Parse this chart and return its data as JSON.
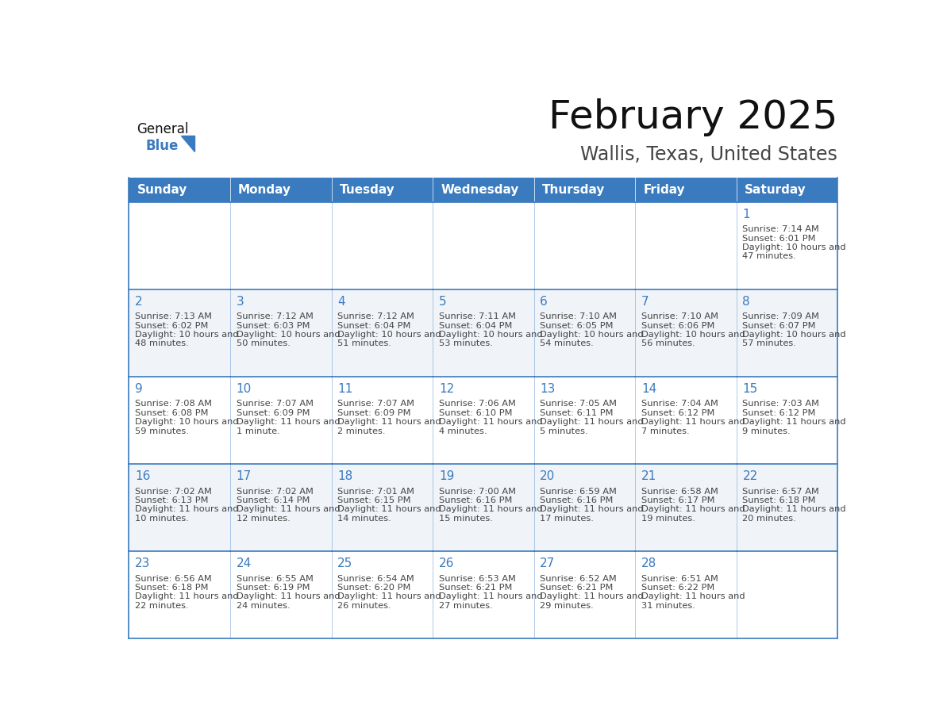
{
  "title": "February 2025",
  "subtitle": "Wallis, Texas, United States",
  "days_of_week": [
    "Sunday",
    "Monday",
    "Tuesday",
    "Wednesday",
    "Thursday",
    "Friday",
    "Saturday"
  ],
  "header_bg_color": "#3a7abf",
  "header_text_color": "#ffffff",
  "cell_bg_color": "#ffffff",
  "alt_cell_bg_color": "#f0f4f8",
  "border_color": "#3a7abf",
  "day_number_color": "#3a7abf",
  "cell_text_color": "#444444",
  "title_color": "#111111",
  "subtitle_color": "#444444",
  "logo_general_color": "#111111",
  "logo_blue_color": "#3a7abf",
  "calendar_data": [
    [
      null,
      null,
      null,
      null,
      null,
      null,
      {
        "day": 1,
        "sunrise": "7:14 AM",
        "sunset": "6:01 PM",
        "daylight": "10 hours and 47 minutes."
      }
    ],
    [
      {
        "day": 2,
        "sunrise": "7:13 AM",
        "sunset": "6:02 PM",
        "daylight": "10 hours and 48 minutes."
      },
      {
        "day": 3,
        "sunrise": "7:12 AM",
        "sunset": "6:03 PM",
        "daylight": "10 hours and 50 minutes."
      },
      {
        "day": 4,
        "sunrise": "7:12 AM",
        "sunset": "6:04 PM",
        "daylight": "10 hours and 51 minutes."
      },
      {
        "day": 5,
        "sunrise": "7:11 AM",
        "sunset": "6:04 PM",
        "daylight": "10 hours and 53 minutes."
      },
      {
        "day": 6,
        "sunrise": "7:10 AM",
        "sunset": "6:05 PM",
        "daylight": "10 hours and 54 minutes."
      },
      {
        "day": 7,
        "sunrise": "7:10 AM",
        "sunset": "6:06 PM",
        "daylight": "10 hours and 56 minutes."
      },
      {
        "day": 8,
        "sunrise": "7:09 AM",
        "sunset": "6:07 PM",
        "daylight": "10 hours and 57 minutes."
      }
    ],
    [
      {
        "day": 9,
        "sunrise": "7:08 AM",
        "sunset": "6:08 PM",
        "daylight": "10 hours and 59 minutes."
      },
      {
        "day": 10,
        "sunrise": "7:07 AM",
        "sunset": "6:09 PM",
        "daylight": "11 hours and 1 minute."
      },
      {
        "day": 11,
        "sunrise": "7:07 AM",
        "sunset": "6:09 PM",
        "daylight": "11 hours and 2 minutes."
      },
      {
        "day": 12,
        "sunrise": "7:06 AM",
        "sunset": "6:10 PM",
        "daylight": "11 hours and 4 minutes."
      },
      {
        "day": 13,
        "sunrise": "7:05 AM",
        "sunset": "6:11 PM",
        "daylight": "11 hours and 5 minutes."
      },
      {
        "day": 14,
        "sunrise": "7:04 AM",
        "sunset": "6:12 PM",
        "daylight": "11 hours and 7 minutes."
      },
      {
        "day": 15,
        "sunrise": "7:03 AM",
        "sunset": "6:12 PM",
        "daylight": "11 hours and 9 minutes."
      }
    ],
    [
      {
        "day": 16,
        "sunrise": "7:02 AM",
        "sunset": "6:13 PM",
        "daylight": "11 hours and 10 minutes."
      },
      {
        "day": 17,
        "sunrise": "7:02 AM",
        "sunset": "6:14 PM",
        "daylight": "11 hours and 12 minutes."
      },
      {
        "day": 18,
        "sunrise": "7:01 AM",
        "sunset": "6:15 PM",
        "daylight": "11 hours and 14 minutes."
      },
      {
        "day": 19,
        "sunrise": "7:00 AM",
        "sunset": "6:16 PM",
        "daylight": "11 hours and 15 minutes."
      },
      {
        "day": 20,
        "sunrise": "6:59 AM",
        "sunset": "6:16 PM",
        "daylight": "11 hours and 17 minutes."
      },
      {
        "day": 21,
        "sunrise": "6:58 AM",
        "sunset": "6:17 PM",
        "daylight": "11 hours and 19 minutes."
      },
      {
        "day": 22,
        "sunrise": "6:57 AM",
        "sunset": "6:18 PM",
        "daylight": "11 hours and 20 minutes."
      }
    ],
    [
      {
        "day": 23,
        "sunrise": "6:56 AM",
        "sunset": "6:18 PM",
        "daylight": "11 hours and 22 minutes."
      },
      {
        "day": 24,
        "sunrise": "6:55 AM",
        "sunset": "6:19 PM",
        "daylight": "11 hours and 24 minutes."
      },
      {
        "day": 25,
        "sunrise": "6:54 AM",
        "sunset": "6:20 PM",
        "daylight": "11 hours and 26 minutes."
      },
      {
        "day": 26,
        "sunrise": "6:53 AM",
        "sunset": "6:21 PM",
        "daylight": "11 hours and 27 minutes."
      },
      {
        "day": 27,
        "sunrise": "6:52 AM",
        "sunset": "6:21 PM",
        "daylight": "11 hours and 29 minutes."
      },
      {
        "day": 28,
        "sunrise": "6:51 AM",
        "sunset": "6:22 PM",
        "daylight": "11 hours and 31 minutes."
      },
      null
    ]
  ]
}
